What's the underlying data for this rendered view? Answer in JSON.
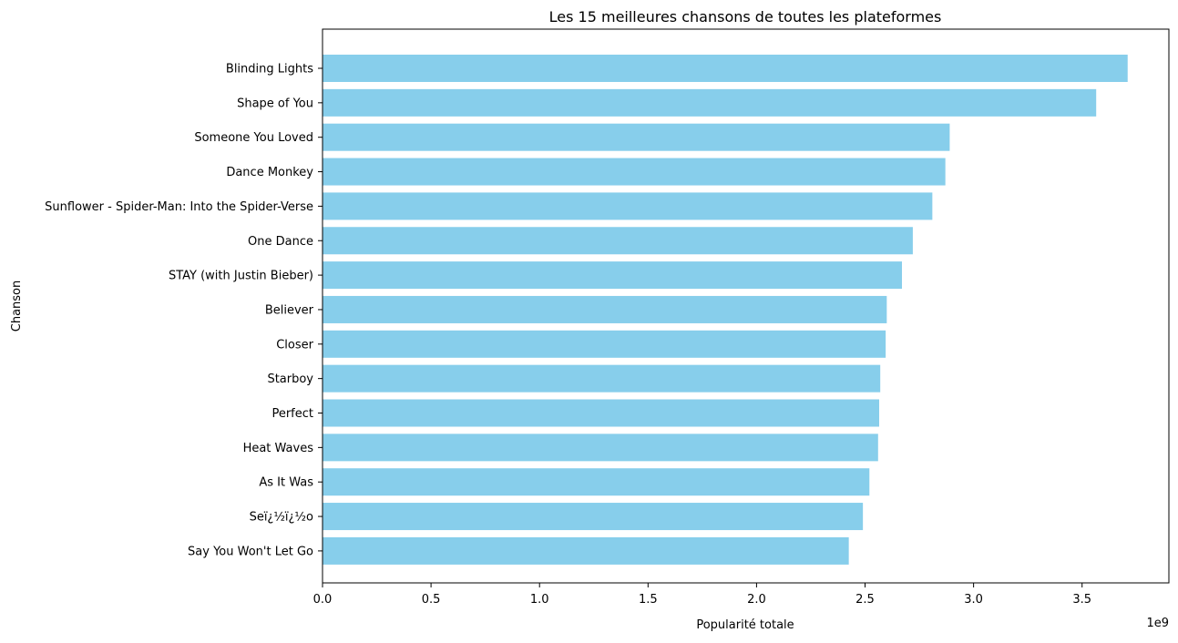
{
  "chart_data": {
    "type": "bar",
    "orientation": "horizontal",
    "title": "Les 15 meilleures chansons de toutes les plateformes",
    "xlabel": "Popularité totale",
    "ylabel": "Chanson",
    "x_offset_label": "1e9",
    "xlim": [
      0,
      3.9
    ],
    "x_scale_exponent": 9,
    "x_tick_values": [
      0.0,
      0.5,
      1.0,
      1.5,
      2.0,
      2.5,
      3.0,
      3.5
    ],
    "x_tick_labels": [
      "0.0",
      "0.5",
      "1.0",
      "1.5",
      "2.0",
      "2.5",
      "3.0",
      "3.5"
    ],
    "bar_color": "#87CEEB",
    "grid": false,
    "categories": [
      "Blinding Lights",
      "Shape of You",
      "Someone You Loved",
      "Dance Monkey",
      "Sunflower - Spider-Man: Into the Spider-Verse",
      "One Dance",
      "STAY (with Justin Bieber)",
      "Believer",
      "Closer",
      "Starboy",
      "Perfect",
      "Heat Waves",
      "As It Was",
      "Seï¿½ï¿½o",
      "Say You Won't Let Go"
    ],
    "values": [
      3.71,
      3.565,
      2.89,
      2.87,
      2.81,
      2.72,
      2.67,
      2.6,
      2.595,
      2.57,
      2.565,
      2.56,
      2.52,
      2.49,
      2.425
    ]
  }
}
